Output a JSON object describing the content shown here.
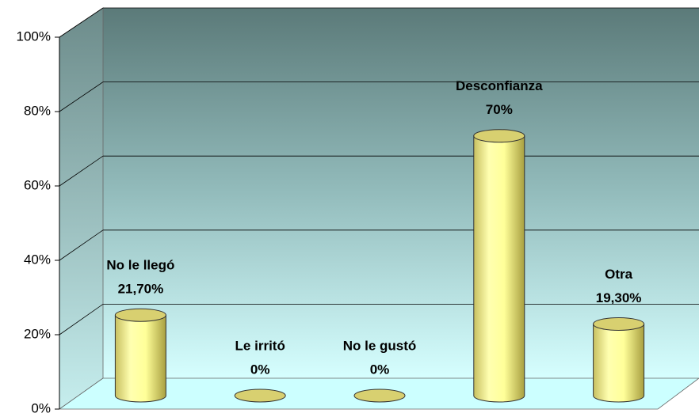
{
  "chart_data": {
    "type": "bar",
    "categories": [
      "No le llegó",
      "Le irritó",
      "No le gustó",
      "Desconfianza",
      "Otra"
    ],
    "values": [
      21.7,
      0,
      0,
      70,
      19.3
    ],
    "value_labels": [
      "21,70%",
      "0%",
      "0%",
      "70%",
      "19,30%"
    ],
    "color": "#ffff99",
    "ylim": [
      0,
      100
    ],
    "yticks": [
      {
        "value": 0,
        "label": "0%"
      },
      {
        "value": 20,
        "label": "20%"
      },
      {
        "value": 40,
        "label": "40%"
      },
      {
        "value": 60,
        "label": "60%"
      },
      {
        "value": 80,
        "label": "80%"
      },
      {
        "value": 100,
        "label": "100%"
      }
    ],
    "grid": true
  }
}
